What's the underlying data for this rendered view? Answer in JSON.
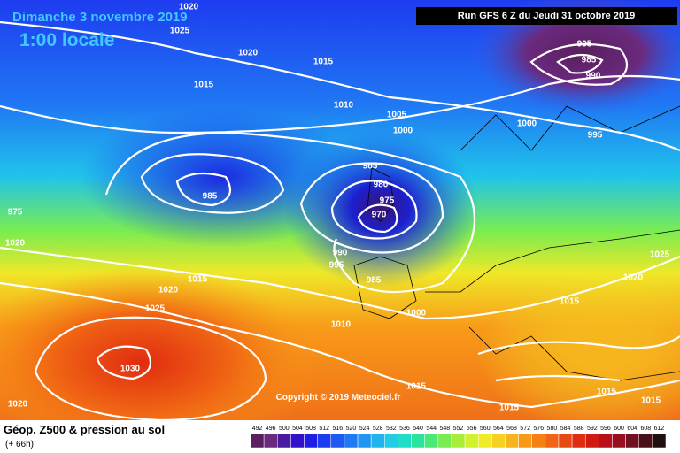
{
  "header": {
    "title": "Dimanche 3 novembre 2019",
    "time": "1:00 locale",
    "run": "Run GFS 6 Z du Jeudi 31 octobre 2019"
  },
  "isobar_labels": [
    "1020",
    "1025",
    "1020",
    "1015",
    "1015",
    "1010",
    "1005",
    "1000",
    "1000",
    "995",
    "985",
    "990",
    "995",
    "985",
    "985",
    "980",
    "975",
    "970",
    "975",
    "1020",
    "990",
    "995",
    "1015",
    "1020",
    "985",
    "1025",
    "1000",
    "1010",
    "1025",
    "1020",
    "1015",
    "1030",
    "1015",
    "1015",
    "1020",
    "1015",
    "1015"
  ],
  "copyright": "Copyright © 2019 Meteociel.fr",
  "footer": {
    "title": "Géop. Z500 & pression au sol",
    "lead": "(+ 66h)"
  },
  "legend": {
    "labels": [
      492,
      496,
      500,
      504,
      508,
      512,
      516,
      520,
      524,
      528,
      532,
      536,
      540,
      544,
      548,
      552,
      556,
      560,
      564,
      568,
      572,
      576,
      580,
      584,
      588,
      592,
      596,
      600,
      604,
      608,
      612
    ],
    "colors": [
      "#5a1f5e",
      "#6a2a7e",
      "#4a1aa0",
      "#3212c8",
      "#1e1ee6",
      "#1c3cf0",
      "#1e5af2",
      "#2078f4",
      "#2096f2",
      "#20b4ee",
      "#22cce6",
      "#20ddc8",
      "#28e49c",
      "#4ae874",
      "#78ec50",
      "#a8ee38",
      "#d2f02c",
      "#f0ea28",
      "#f8d020",
      "#f8b41c",
      "#f89a18",
      "#f48016",
      "#f06414",
      "#e84812",
      "#e02c10",
      "#d01a12",
      "#b81018",
      "#981020",
      "#701020",
      "#481018",
      "#201010"
    ]
  }
}
